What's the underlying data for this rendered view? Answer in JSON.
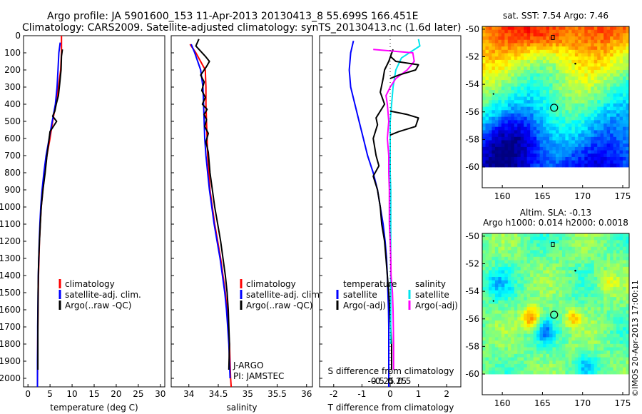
{
  "header": {
    "title_line1": "Argo profile: JA 5901600_153 11-Apr-2013 20130413_8 55.699S 166.451E",
    "title_line2": "Climatology: CARS2009. Satellite-adjusted climatology: synTS_20130413.nc (1.6d later)"
  },
  "footer": {
    "watermark": "©IMOS 20-Apr-2013 17:00:11"
  },
  "colors": {
    "red": "#ff0000",
    "blue": "#0000ff",
    "black": "#000000",
    "cyan": "#00e5ee",
    "magenta": "#ff00ff"
  },
  "chart_data": [
    {
      "id": "temperature",
      "type": "line",
      "xlabel": "temperature (deg C)",
      "xlim": [
        -1,
        31
      ],
      "xticks": [
        0,
        5,
        10,
        15,
        20,
        25,
        30
      ],
      "xtick_labels": [
        "0",
        "5",
        "10",
        "15",
        "20",
        "25",
        "30"
      ],
      "ylim": [
        2050,
        0
      ],
      "yticks": [
        0,
        100,
        200,
        300,
        400,
        500,
        600,
        700,
        800,
        900,
        1000,
        1100,
        1200,
        1300,
        1400,
        1500,
        1600,
        1700,
        1800,
        1900,
        2000
      ],
      "ytick_labels": [
        "0",
        "100",
        "200",
        "300",
        "400",
        "500",
        "600",
        "700",
        "800",
        "900",
        "1000",
        "1100",
        "1200",
        "1300",
        "1400",
        "1500",
        "1600",
        "1700",
        "1800",
        "1900",
        "2000"
      ],
      "legend": [
        "climatology",
        "satellite-adj. clim.",
        "Argo(..raw -QC)"
      ],
      "series": [
        {
          "name": "climatology",
          "color": "red",
          "x": [
            7.6,
            7.6,
            7.4,
            6.9,
            6.3,
            5.6,
            5.0,
            4.3,
            3.8,
            3.4,
            3.0,
            2.8,
            2.6,
            2.5,
            2.4,
            2.35,
            2.3,
            2.25,
            2.2,
            2.2,
            2.15
          ],
          "y": [
            0,
            100,
            200,
            300,
            400,
            500,
            600,
            700,
            800,
            900,
            1000,
            1100,
            1200,
            1300,
            1400,
            1500,
            1600,
            1700,
            1800,
            1900,
            2050
          ]
        },
        {
          "name": "satellite-adj. clim.",
          "color": "blue",
          "x": [
            7.3,
            7.0,
            6.8,
            6.6,
            6.2,
            5.5,
            4.8,
            4.1,
            3.6,
            3.2,
            2.9,
            2.7,
            2.55,
            2.45,
            2.35,
            2.3,
            2.25,
            2.2,
            2.2,
            2.15,
            2.15
          ],
          "y": [
            40,
            100,
            200,
            300,
            400,
            500,
            600,
            700,
            800,
            900,
            1000,
            1100,
            1200,
            1300,
            1400,
            1500,
            1600,
            1700,
            1800,
            1900,
            2050
          ]
        },
        {
          "name": "Argo(..raw -QC)",
          "color": "black",
          "x": [
            7.8,
            7.6,
            7.5,
            7.2,
            6.9,
            6.4,
            6.1,
            5.6,
            6.5,
            5.0,
            4.7,
            4.3,
            3.9,
            3.4,
            3.0,
            2.8,
            2.6,
            2.45,
            2.35,
            2.3,
            2.25,
            2.25
          ],
          "y": [
            80,
            120,
            200,
            280,
            350,
            400,
            440,
            470,
            500,
            560,
            620,
            700,
            800,
            900,
            1000,
            1100,
            1200,
            1300,
            1400,
            1500,
            1700,
            1950
          ]
        }
      ]
    },
    {
      "id": "salinity",
      "type": "line",
      "xlabel": "salinity",
      "xlim": [
        33.7,
        36.1
      ],
      "xticks": [
        34,
        34.5,
        35,
        35.5,
        36
      ],
      "xtick_labels": [
        "34",
        "34.5",
        "35",
        "35.5",
        "36"
      ],
      "ylim": [
        2050,
        0
      ],
      "legend": [
        "climatology",
        "satellite-adj. clim.",
        "Argo(..raw -QC)"
      ],
      "annotations": [
        "J-ARGO",
        "PI: JAMSTEC"
      ],
      "series": [
        {
          "name": "climatology",
          "color": "red",
          "x": [
            34.02,
            34.12,
            34.28,
            34.29,
            34.29,
            34.3,
            34.31,
            34.32,
            34.34,
            34.36,
            34.4,
            34.44,
            34.49,
            34.54,
            34.58,
            34.62,
            34.65,
            34.67,
            34.69,
            34.7,
            34.71,
            34.72
          ],
          "y": [
            50,
            100,
            200,
            300,
            400,
            500,
            600,
            700,
            800,
            900,
            1000,
            1100,
            1200,
            1300,
            1400,
            1500,
            1600,
            1700,
            1800,
            1900,
            2000,
            2050
          ]
        },
        {
          "name": "satellite-adj. clim.",
          "color": "blue",
          "x": [
            34.04,
            34.1,
            34.2,
            34.24,
            34.25,
            34.26,
            34.27,
            34.29,
            34.32,
            34.35,
            34.39,
            34.43,
            34.48,
            34.53,
            34.57,
            34.61,
            34.64,
            34.66,
            34.68,
            34.69,
            34.7
          ],
          "y": [
            50,
            100,
            200,
            300,
            400,
            500,
            600,
            700,
            800,
            900,
            1000,
            1100,
            1200,
            1300,
            1400,
            1500,
            1600,
            1700,
            1800,
            1900,
            2000
          ]
        },
        {
          "name": "Argo(..raw -QC)",
          "color": "black",
          "x": [
            34.17,
            34.12,
            34.28,
            34.35,
            34.3,
            34.26,
            34.2,
            34.26,
            34.22,
            34.28,
            34.23,
            34.31,
            34.26,
            34.3,
            34.27,
            34.33,
            34.29,
            34.33,
            34.36,
            34.4,
            34.44,
            34.49,
            34.54,
            34.58,
            34.62,
            34.65,
            34.67,
            34.68,
            34.69,
            34.68
          ],
          "y": [
            20,
            60,
            120,
            150,
            180,
            200,
            230,
            270,
            320,
            360,
            400,
            430,
            460,
            490,
            530,
            570,
            620,
            680,
            800,
            900,
            1000,
            1100,
            1200,
            1300,
            1400,
            1500,
            1600,
            1700,
            1800,
            1950
          ]
        }
      ]
    },
    {
      "id": "differences",
      "type": "line",
      "xlabel": "T difference from climatology",
      "xlabel_top": "S difference from climatology",
      "xlim": [
        -2.5,
        2.5
      ],
      "xticks": [
        -2,
        -1,
        0,
        1,
        2
      ],
      "xtick_labels": [
        "-2",
        "-1",
        "0",
        "1",
        "2"
      ],
      "sticks": [
        -0.5,
        -0.25,
        0,
        0.25,
        0.5
      ],
      "stick_labels": [
        "-0.5",
        "-0.25",
        "0",
        "0.25",
        "0.5"
      ],
      "ylim": [
        2050,
        0
      ],
      "legend_groups": [
        "temperature",
        "salinity"
      ],
      "legend": [
        "satellite",
        "Argo(-adj)",
        "satellite",
        "Argo(-adj)"
      ],
      "series": [
        {
          "name": "T satellite",
          "color": "blue",
          "x": [
            -1.3,
            -1.4,
            -1.45,
            -1.4,
            -1.25,
            -1.1,
            -0.95,
            -0.8,
            -0.6,
            -0.45,
            -0.35,
            -0.25,
            -0.18,
            -0.13,
            -0.1,
            -0.08,
            -0.06,
            -0.05,
            -0.05,
            -0.05,
            -0.05
          ],
          "y": [
            30,
            100,
            200,
            300,
            400,
            500,
            600,
            700,
            800,
            900,
            1000,
            1100,
            1200,
            1300,
            1400,
            1500,
            1600,
            1700,
            1800,
            1900,
            2050
          ]
        },
        {
          "name": "T Argo(-adj)",
          "color": "black",
          "x": [
            0.1,
            -0.05,
            -0.2,
            -0.25,
            -0.35,
            -0.2,
            -0.5,
            -0.45,
            -0.6,
            -0.5,
            -0.4,
            -0.6,
            -0.45,
            -0.35,
            -0.3,
            -0.2,
            -0.15,
            -0.1,
            -0.05,
            0.0,
            0.05,
            0.05
          ],
          "y": [
            80,
            150,
            200,
            250,
            330,
            400,
            480,
            520,
            600,
            700,
            760,
            820,
            900,
            1000,
            1100,
            1200,
            1300,
            1400,
            1500,
            1650,
            1800,
            1950
          ]
        },
        {
          "name": "S satellite",
          "color": "cyan",
          "x": [
            1.0,
            1.05,
            0.4,
            0.2,
            0.1,
            0.05,
            0.0,
            0.0,
            0.0,
            0.0,
            0.02,
            0.02,
            0.02,
            0.02,
            0.02,
            0.02,
            0.02,
            0.02,
            0.02,
            0.02
          ],
          "y": [
            20,
            60,
            130,
            200,
            300,
            400,
            500,
            600,
            700,
            800,
            900,
            1000,
            1100,
            1200,
            1300,
            1400,
            1500,
            1600,
            1700,
            1800
          ]
        },
        {
          "name": "S Argo(-adj)",
          "color": "magenta",
          "x": [
            -0.6,
            0.8,
            0.85,
            0.6,
            0.2,
            0.0,
            -0.15,
            -0.1,
            -0.05,
            -0.1,
            -0.05,
            -0.05,
            -0.03,
            -0.03,
            -0.03,
            0.0,
            0.02,
            0.03,
            0.08,
            0.1,
            0.12,
            0.12
          ],
          "y": [
            80,
            100,
            150,
            200,
            250,
            300,
            350,
            400,
            500,
            600,
            700,
            800,
            900,
            1000,
            1100,
            1200,
            1300,
            1400,
            1500,
            1600,
            1800,
            1950
          ]
        },
        {
          "name": "T Argo peak",
          "color": "black",
          "x": [
            0.0,
            0.2,
            1.0,
            0.9,
            0.3,
            0.0
          ],
          "y": [
            120,
            150,
            170,
            200,
            230,
            250
          ]
        },
        {
          "name": "T Argo bump 500",
          "color": "black",
          "x": [
            0.0,
            0.6,
            1.0,
            0.9,
            0.3,
            0.0
          ],
          "y": [
            440,
            460,
            480,
            530,
            560,
            580
          ]
        }
      ]
    },
    {
      "id": "sst_map",
      "type": "heatmap",
      "title": "sat. SST: 7.54  Argo: 7.46",
      "xticks": [
        160,
        165,
        170,
        175
      ],
      "xtick_labels": [
        "160",
        "165",
        "170",
        "175"
      ],
      "yticks": [
        -50,
        -52,
        -54,
        -56,
        -58,
        -60
      ],
      "ytick_labels": [
        "-50",
        "-52",
        "-54",
        "-56",
        "-58",
        "-60"
      ],
      "xlim": [
        157.5,
        175.8
      ],
      "ylim": [
        -61.5,
        -49.8
      ],
      "data_extent_lat": [
        -60,
        -49.8
      ],
      "argo_position": [
        166.451,
        -55.699
      ]
    },
    {
      "id": "sla_map",
      "type": "heatmap",
      "title": "Altim. SLA: -0.13",
      "subtitle": "Argo h1000: 0.014  h2000: 0.0018",
      "xticks": [
        160,
        165,
        170,
        175
      ],
      "xtick_labels": [
        "160",
        "165",
        "170",
        "175"
      ],
      "yticks": [
        -50,
        -52,
        -54,
        -56,
        -58,
        -60
      ],
      "ytick_labels": [
        "-50",
        "-52",
        "-54",
        "-56",
        "-58",
        "-60"
      ],
      "xlim": [
        157.5,
        175.8
      ],
      "ylim": [
        -61.5,
        -49.8
      ],
      "data_extent_lat": [
        -60,
        -49.8
      ],
      "argo_position": [
        166.451,
        -55.699
      ]
    }
  ]
}
